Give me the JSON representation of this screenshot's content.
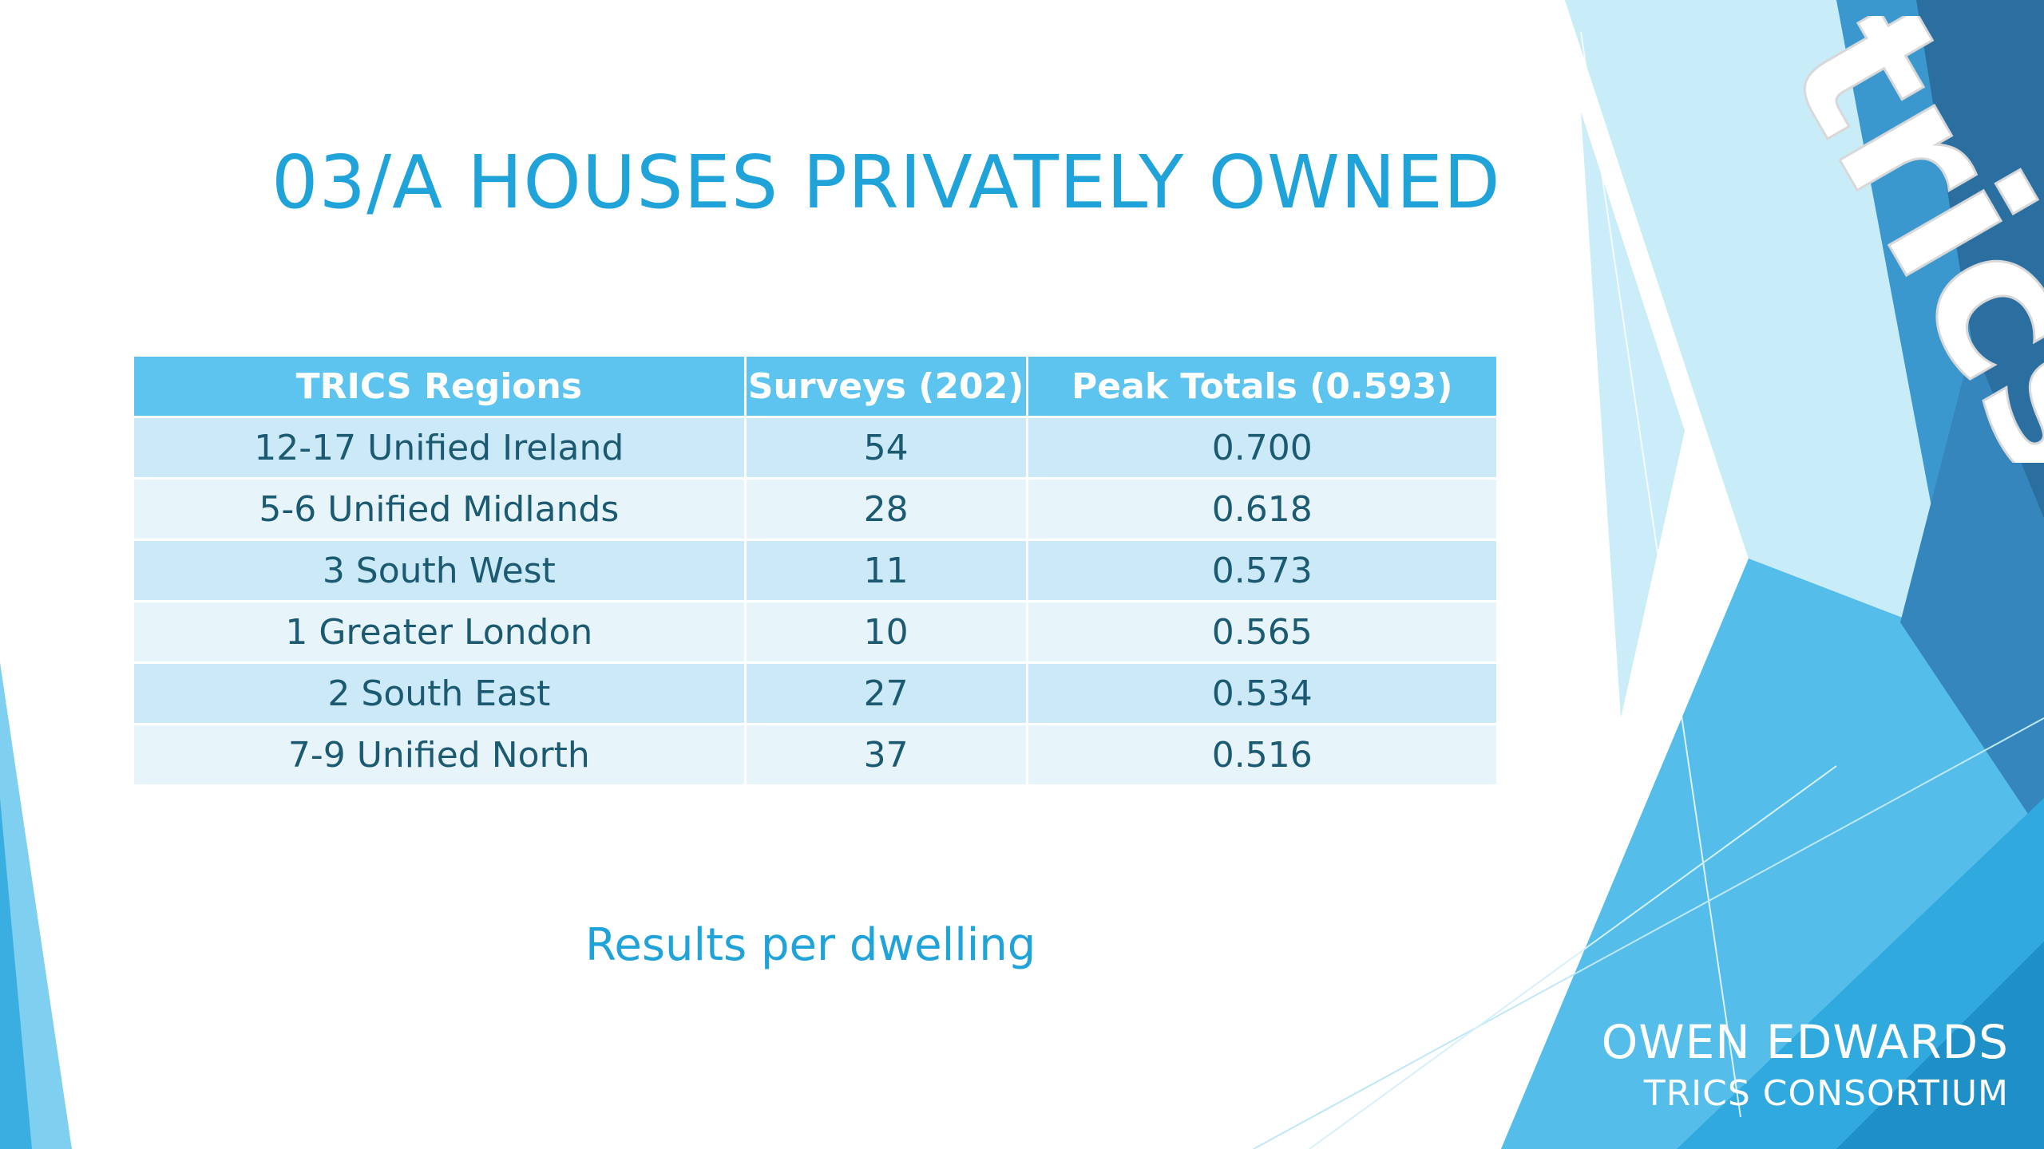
{
  "slide": {
    "title": "03/A HOUSES PRIVATELY OWNED",
    "subtitle": "Results per dwelling"
  },
  "table": {
    "headers": [
      "TRICS Regions",
      "Surveys (202)",
      "Peak Totals (0.593)"
    ],
    "rows": [
      [
        "12-17 Unified Ireland",
        "54",
        "0.700"
      ],
      [
        "5-6 Unified Midlands",
        "28",
        "0.618"
      ],
      [
        "3 South West",
        "11",
        "0.573"
      ],
      [
        "1 Greater London",
        "10",
        "0.565"
      ],
      [
        "2 South East",
        "27",
        "0.534"
      ],
      [
        "7-9 Unified North",
        "37",
        "0.516"
      ]
    ]
  },
  "branding": {
    "logo_text": "trics",
    "presenter_name": "OWEN EDWARDS",
    "presenter_org": "TRICS CONSORTIUM"
  },
  "colors": {
    "title": "#1fa3d9",
    "header_bg": "#5cc4ee",
    "row_dark": "#cbe9f7",
    "row_light": "#e7f5fb",
    "table_text": "#1c5a72",
    "deco_light": "#7fd0f0",
    "deco_mid": "#3aaee0",
    "deco_dark": "#2a6fa0"
  }
}
